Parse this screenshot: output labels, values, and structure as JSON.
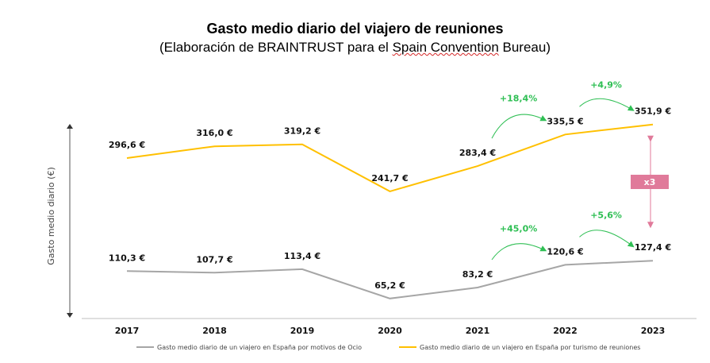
{
  "header": {
    "title": "Gasto medio diario del viajero de reuniones",
    "subtitle_pre": "(Elaboración de BRAINTRUST para el ",
    "subtitle_mark": "Spain Convention",
    "subtitle_post": " Bureau)"
  },
  "chart_data": {
    "type": "line",
    "ylabel": "Gasto medio diario (€)",
    "xlabel": "",
    "categories": [
      "2017",
      "2018",
      "2019",
      "2020",
      "2021",
      "2022",
      "2023"
    ],
    "ylim": [
      40,
      400
    ],
    "grid": false,
    "legend_position": "bottom",
    "series": [
      {
        "name": "Gasto medio diario de un viajero en España por motivos de Ocio",
        "color": "#a6a6a6",
        "values": [
          110.3,
          107.7,
          113.4,
          65.2,
          83.2,
          120.6,
          127.4
        ],
        "labels": [
          "110,3 €",
          "107,7 €",
          "113,4 €",
          "65,2 €",
          "83,2 €",
          "120,6 €",
          "127,4 €"
        ]
      },
      {
        "name": "Gasto medio diario de un viajero en España por turismo de reuniones",
        "color": "#ffc000",
        "values": [
          296.6,
          316.0,
          319.2,
          241.7,
          283.4,
          335.5,
          351.9
        ],
        "labels": [
          "296,6 €",
          "316,0 €",
          "319,2 €",
          "241,7 €",
          "283,4 €",
          "335,5 €",
          "351,9 €"
        ]
      }
    ],
    "annotations": {
      "growth_color": "#2fbf54",
      "ratio_color": "#e07a9a",
      "ratio_label": "x3",
      "growth": [
        {
          "series": 1,
          "from": 4,
          "to": 5,
          "label": "+18,4%"
        },
        {
          "series": 1,
          "from": 5,
          "to": 6,
          "label": "+4,9%"
        },
        {
          "series": 0,
          "from": 4,
          "to": 5,
          "label": "+45,0%"
        },
        {
          "series": 0,
          "from": 5,
          "to": 6,
          "label": "+5,6%"
        }
      ]
    }
  }
}
